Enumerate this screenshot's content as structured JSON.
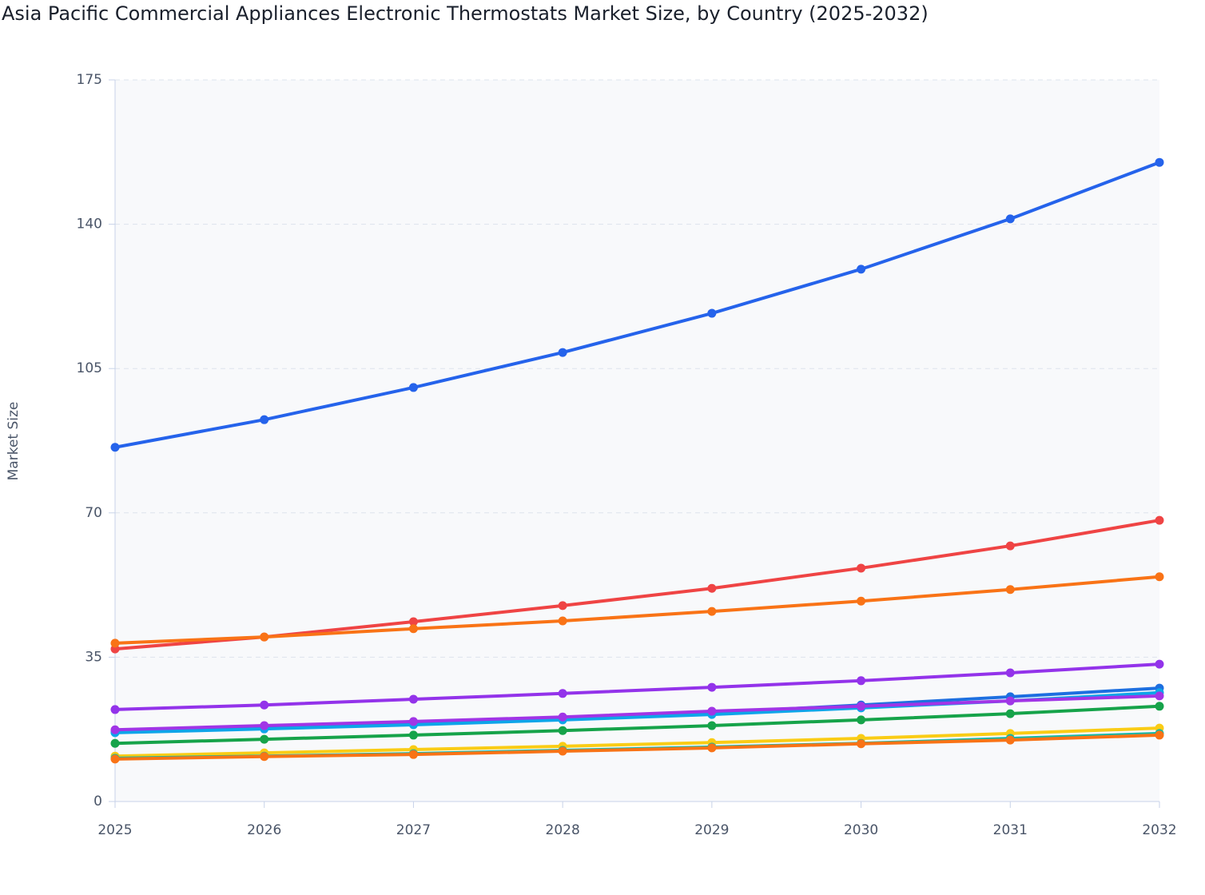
{
  "chart_data": {
    "type": "line",
    "title": "Asia Pacific Commercial Appliances Electronic Thermostats Market Size, by Country (2025-2032)",
    "y_label": "Market Size",
    "x": [
      2025,
      2026,
      2027,
      2028,
      2029,
      2030,
      2031,
      2032
    ],
    "xlim": [
      2025,
      2032
    ],
    "xticks": [
      2025,
      2026,
      2027,
      2028,
      2029,
      2030,
      2031,
      2032
    ],
    "ylim": [
      0,
      175
    ],
    "yticks": [
      0,
      35,
      70,
      105,
      140,
      175
    ],
    "grid": true,
    "series": [
      {
        "color": "#2563eb",
        "values": [
          85.9,
          92.6,
          100.4,
          108.9,
          118.4,
          129.1,
          141.3,
          155.0
        ]
      },
      {
        "color": "#ef4444",
        "values": [
          37.0,
          39.9,
          43.6,
          47.5,
          51.7,
          56.6,
          62.0,
          68.2
        ]
      },
      {
        "color": "#f97316",
        "values": [
          38.4,
          39.9,
          41.9,
          43.8,
          46.1,
          48.6,
          51.4,
          54.5
        ]
      },
      {
        "color": "#9333ea",
        "values": [
          22.3,
          23.4,
          24.8,
          26.2,
          27.7,
          29.3,
          31.2,
          33.3
        ]
      },
      {
        "color": "#1d6fe0",
        "values": [
          16.9,
          17.8,
          19.0,
          20.2,
          21.5,
          23.4,
          25.4,
          27.5
        ]
      },
      {
        "color": "#0ea5e9",
        "values": [
          16.7,
          17.6,
          18.6,
          19.8,
          21.1,
          22.7,
          24.4,
          26.4
        ]
      },
      {
        "color": "#a135e6",
        "values": [
          17.4,
          18.4,
          19.4,
          20.5,
          21.9,
          23.1,
          24.4,
          25.6
        ]
      },
      {
        "color": "#16a34a",
        "values": [
          14.1,
          15.1,
          16.1,
          17.2,
          18.4,
          19.8,
          21.3,
          23.1
        ]
      },
      {
        "color": "#facc15",
        "values": [
          11.0,
          11.8,
          12.6,
          13.4,
          14.3,
          15.3,
          16.5,
          17.8
        ]
      },
      {
        "color": "#14b8a6",
        "values": [
          10.5,
          11.0,
          11.6,
          12.4,
          13.2,
          14.1,
          15.3,
          16.5
        ]
      },
      {
        "color": "#f97316",
        "values": [
          10.3,
          10.9,
          11.4,
          12.2,
          13.0,
          14.0,
          14.9,
          16.1
        ]
      }
    ]
  }
}
